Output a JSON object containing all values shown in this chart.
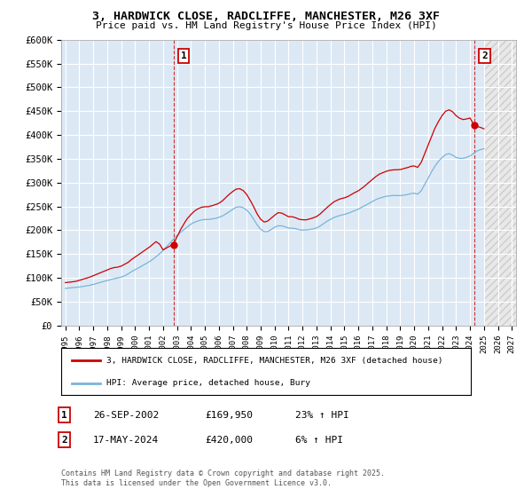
{
  "title": "3, HARDWICK CLOSE, RADCLIFFE, MANCHESTER, M26 3XF",
  "subtitle": "Price paid vs. HM Land Registry's House Price Index (HPI)",
  "ylim": [
    0,
    600000
  ],
  "ytick_values": [
    0,
    50000,
    100000,
    150000,
    200000,
    250000,
    300000,
    350000,
    400000,
    450000,
    500000,
    550000,
    600000
  ],
  "ytick_labels": [
    "£0",
    "£50K",
    "£100K",
    "£150K",
    "£200K",
    "£250K",
    "£300K",
    "£350K",
    "£400K",
    "£450K",
    "£500K",
    "£550K",
    "£600K"
  ],
  "bg_color": "#dce9f5",
  "grid_color": "#ffffff",
  "hpi_color": "#7ab4d8",
  "price_color": "#cc0000",
  "legend_label_price": "3, HARDWICK CLOSE, RADCLIFFE, MANCHESTER, M26 3XF (detached house)",
  "legend_label_hpi": "HPI: Average price, detached house, Bury",
  "annotation1_label": "1",
  "annotation1_date": "26-SEP-2002",
  "annotation1_price": "£169,950",
  "annotation1_hpi": "23% ↑ HPI",
  "annotation2_label": "2",
  "annotation2_date": "17-MAY-2024",
  "annotation2_price": "£420,000",
  "annotation2_hpi": "6% ↑ HPI",
  "copyright_text": "Contains HM Land Registry data © Crown copyright and database right 2025.\nThis data is licensed under the Open Government Licence v3.0.",
  "xstart_year": 1995,
  "xend_year": 2027,
  "sale1_year": 2002.75,
  "sale1_price": 169950,
  "sale2_year": 2024.33,
  "sale2_price": 420000
}
